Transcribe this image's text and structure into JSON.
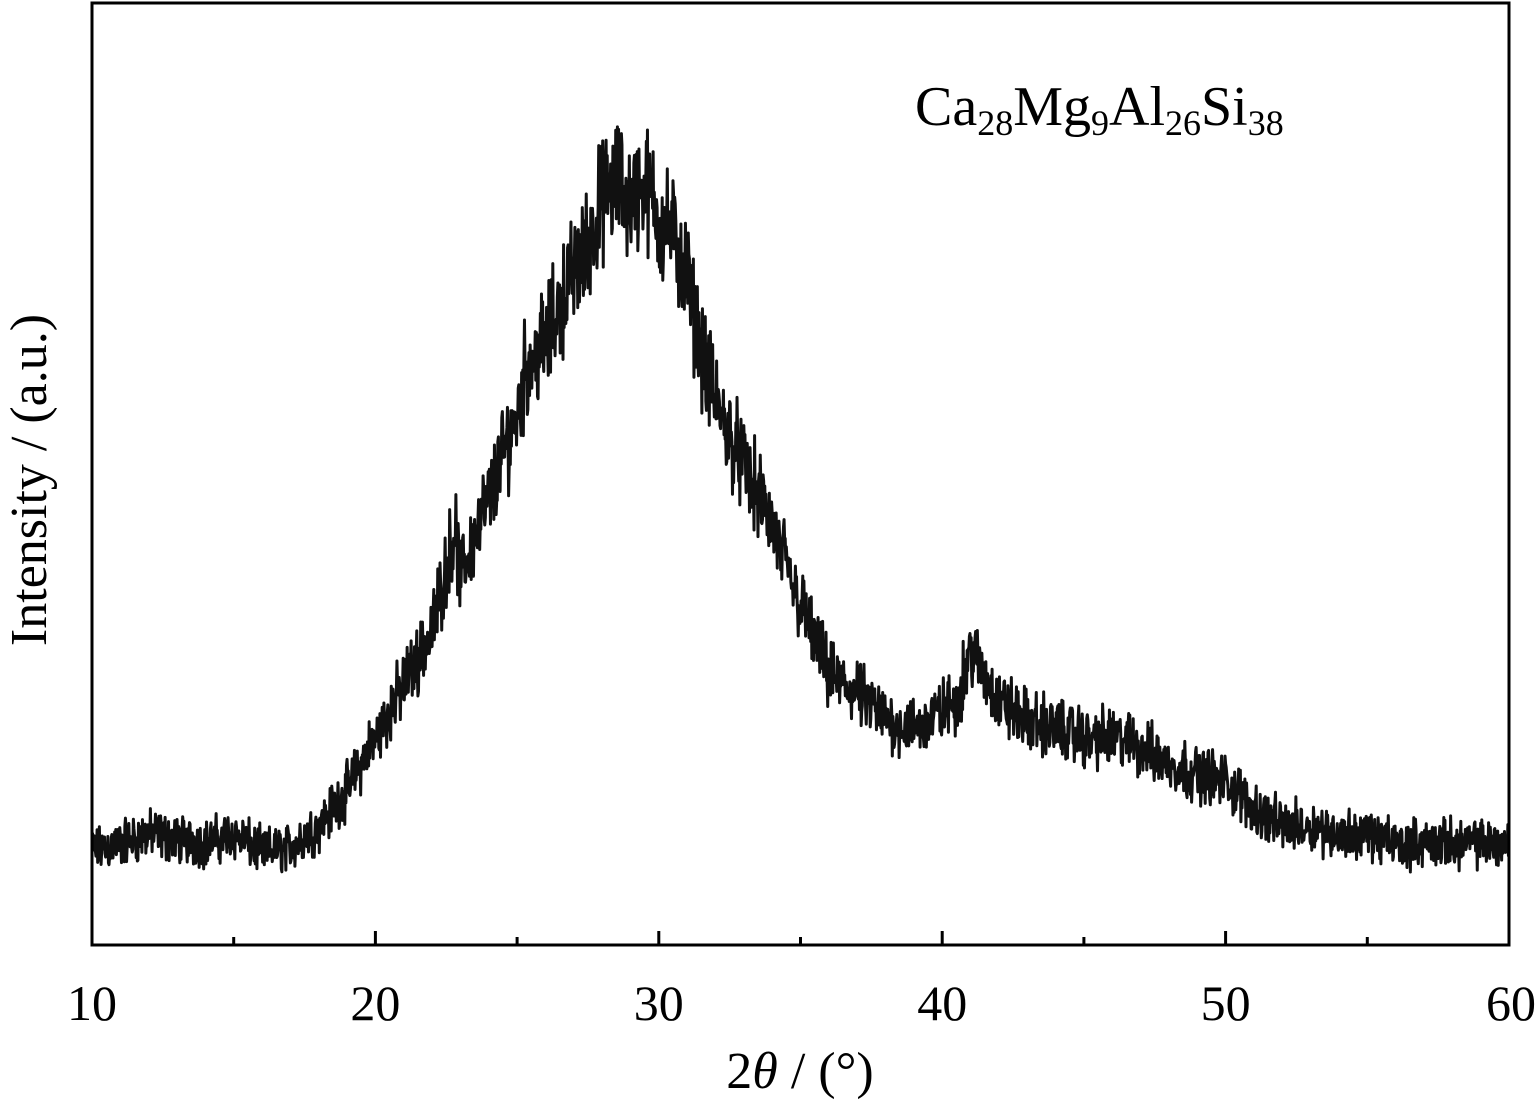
{
  "chart_data": {
    "type": "line",
    "title": "",
    "xlabel": {
      "prefix": "2",
      "symbol": "θ",
      "suffix": " / (°)"
    },
    "ylabel": "Intensity / (a.u.)",
    "xlim": [
      10,
      60
    ],
    "ylim": [
      0,
      100
    ],
    "x_major_ticks": [
      10,
      20,
      30,
      40,
      50,
      60
    ],
    "x_tick_labels": [
      "10",
      "20",
      "30",
      "40",
      "50",
      "60"
    ],
    "x_minor_ticks": [
      15,
      25,
      35,
      45,
      55
    ],
    "y_ticks": [],
    "grid": false,
    "legend": "none",
    "annotation": {
      "parts": [
        {
          "text": "Ca",
          "sub": false
        },
        {
          "text": "28",
          "sub": true
        },
        {
          "text": "Mg",
          "sub": false
        },
        {
          "text": "9",
          "sub": true
        },
        {
          "text": "Al",
          "sub": false
        },
        {
          "text": "26",
          "sub": true
        },
        {
          "text": "Si",
          "sub": false
        },
        {
          "text": "38",
          "sub": true
        }
      ],
      "position": "top-right"
    },
    "line_color": "#111111",
    "series": [
      {
        "x": [
          10,
          11,
          12,
          13,
          14,
          15,
          16,
          17,
          18,
          19,
          20,
          21,
          22,
          22.8,
          23,
          23.5,
          24,
          25,
          25.3,
          26,
          26.5,
          27,
          27.5,
          28,
          28.5,
          29,
          29.5,
          30,
          30.5,
          31,
          31.5,
          32,
          33,
          34,
          35,
          35.5,
          36,
          37,
          38,
          39,
          40,
          40.5,
          41,
          41.5,
          42,
          43,
          44,
          45,
          46,
          47,
          48,
          49,
          50,
          51,
          52,
          53,
          54,
          55,
          56,
          57,
          58,
          59,
          60
        ],
        "y": [
          10,
          11,
          12,
          11.5,
          11,
          12,
          10,
          10.5,
          13,
          17,
          23,
          29,
          35,
          47,
          41,
          46,
          50,
          60,
          65,
          68,
          72,
          76,
          79,
          84,
          86,
          84,
          86,
          82,
          80,
          75,
          67,
          61,
          54,
          47,
          38,
          34,
          30,
          28,
          25,
          24,
          26,
          27,
          33,
          30,
          27,
          25,
          24,
          23,
          23,
          22,
          20,
          19,
          18,
          15,
          13,
          13,
          12,
          12,
          11,
          11,
          11,
          11,
          11
        ]
      }
    ]
  }
}
